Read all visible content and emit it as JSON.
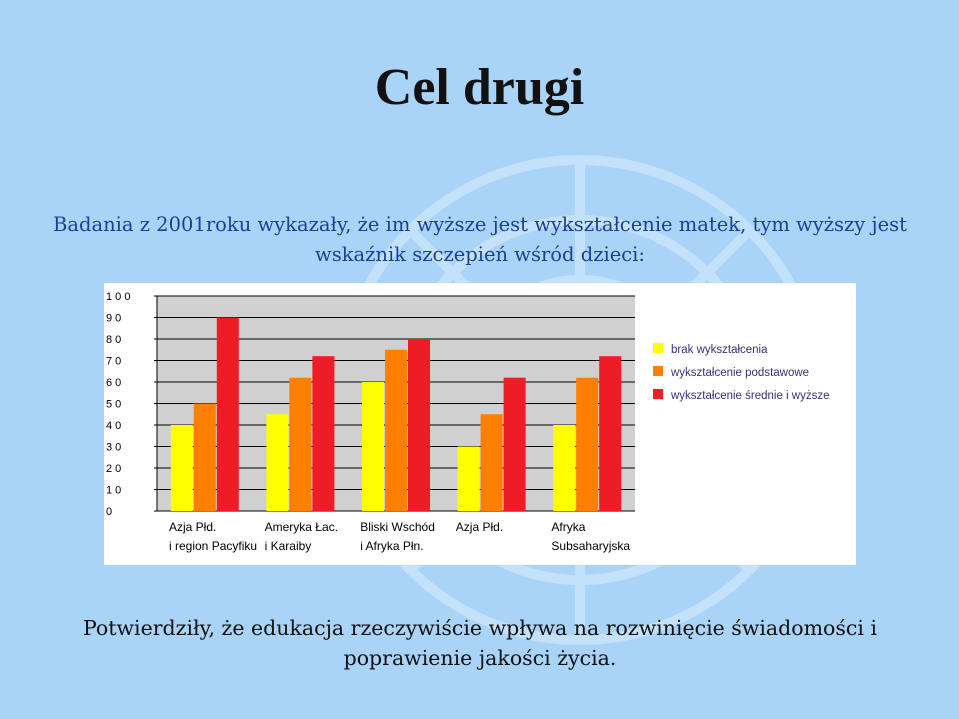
{
  "slide": {
    "title": "Cel drugi",
    "intro": "Badania z 2001roku wykazały, że im wyższe jest wykształcenie matek, tym wyższy jest wskaźnik szczepień wśród dzieci:",
    "conclusion": "Potwierdziły, że edukacja rzeczywiście wpływa na rozwinięcie świadomości i poprawienie jakości życia."
  },
  "chart_data": {
    "type": "bar",
    "categories": [
      [
        "Azja Płd.",
        "i region Pacyfiku"
      ],
      [
        "Ameryka Łac.",
        "i Karaiby"
      ],
      [
        "Bliski Wschód",
        "i Afryka Płn."
      ],
      [
        "Azja Płd."
      ],
      [
        "Afryka",
        "Subsaharyjska"
      ]
    ],
    "series": [
      {
        "name": "brak wykształcenia",
        "color": "#ffff00",
        "values": [
          40,
          45,
          60,
          30,
          40
        ]
      },
      {
        "name": "wykształcenie podstawowe",
        "color": "#ff7f00",
        "values": [
          50,
          62,
          75,
          45,
          62
        ]
      },
      {
        "name": "wykształcenie średnie i wyższe",
        "color": "#ee1c25",
        "values": [
          90,
          72,
          80,
          62,
          72
        ]
      }
    ],
    "ylim": [
      0,
      100
    ],
    "yticks": [
      "0",
      "1 0",
      "2 0",
      "3 0",
      "4 0",
      "5 0",
      "6 0",
      "7 0",
      "8 0",
      "9 0",
      "1 0 0"
    ],
    "grid": true,
    "legend_position": "right"
  }
}
